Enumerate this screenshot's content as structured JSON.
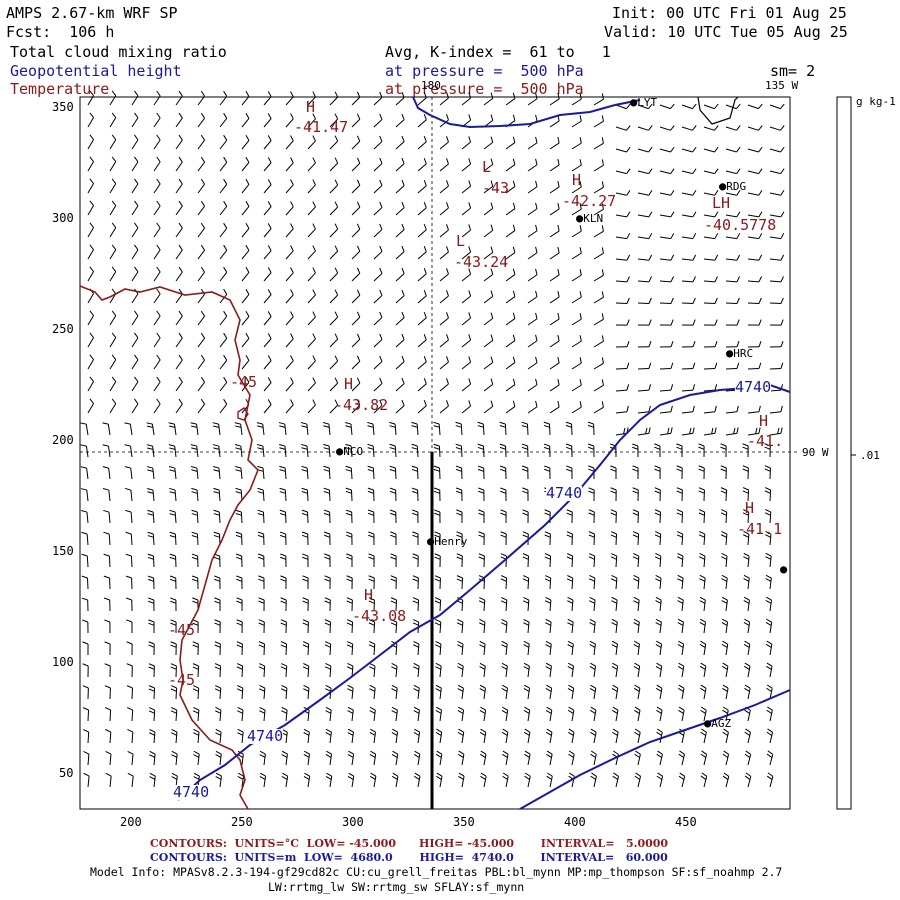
{
  "header": {
    "model": "AMPS 2.67-km WRF SP",
    "forecast": "Fcst:  106 h",
    "init": "Init: 00 UTC Fri 01 Aug 25",
    "valid": "Valid: 10 UTC Tue 05 Aug 25",
    "field1": "Total cloud mixing ratio",
    "field2": "Geopotential height",
    "field3": "Temperature",
    "avg_line": "Avg, K-index =  61 to   1",
    "pressure_line1": "at pressure =  500 hPa",
    "pressure_line2": "at pressure =  500 hPa",
    "smoothing": "sm= 2"
  },
  "map": {
    "meridian_180": "180",
    "meridian_135w": "135 W",
    "meridian_90w": "90 W",
    "x_ticks": [
      "200",
      "250",
      "300",
      "350",
      "400",
      "450"
    ],
    "y_ticks": [
      "350",
      "300",
      "250",
      "200",
      "150",
      "100",
      "50"
    ],
    "stations": [
      {
        "name": "LYT"
      },
      {
        "name": "RDG"
      },
      {
        "name": "KLN"
      },
      {
        "name": "HRC"
      },
      {
        "name": "NCO"
      },
      {
        "name": "Henry"
      },
      {
        "name": "AGZ"
      },
      {
        "name": ""
      }
    ],
    "extrema": [
      {
        "type": "H",
        "value": "-41.47"
      },
      {
        "type": "L",
        "value": "-43"
      },
      {
        "type": "H",
        "value": "-42.27"
      },
      {
        "type": "L",
        "value": "-43.24"
      },
      {
        "type": "LH",
        "value": "-40.5778"
      },
      {
        "type": "H",
        "value": "-43.82"
      },
      {
        "type": "H",
        "value": "-41."
      },
      {
        "type": "H",
        "value": "-41.1"
      },
      {
        "type": "H",
        "value": "-43.08"
      }
    ],
    "temperature_contour_labels": [
      "-45",
      "-45",
      "-45"
    ],
    "height_contour_labels": [
      "4740",
      "4740",
      "4740",
      "4740"
    ],
    "colorbar": {
      "units": "g kg-1",
      "tick": ".01"
    }
  },
  "footer": {
    "temp_contours": "CONTOURS:  UNITS=°C  LOW= -45.000      HIGH= -45.000       INTERVAL=   5.0000",
    "height_contours": "CONTOURS:  UNITS=m  LOW=  4680.0       HIGH=  4740.0       INTERVAL=   60.000",
    "model_info": "Model Info: MPASv8.2.3-194-gf29cd82c CU:cu_grell_freitas PBL:bl_mynn MP:mp_thompson SF:sf_noahmp 2.7",
    "model_info2": "LW:rrtmg_lw SW:rrtmg_sw SFLAY:sf_mynn"
  },
  "colors": {
    "temperature": "#8b1a1a",
    "height": "#1a1a9c",
    "wind": "#000000"
  }
}
